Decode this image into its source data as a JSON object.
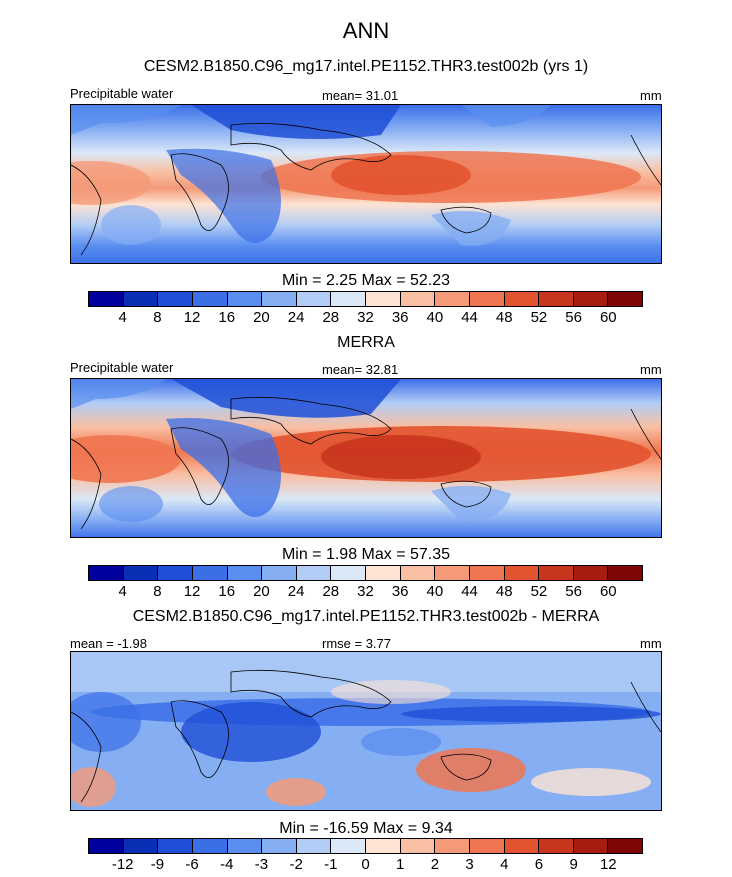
{
  "figure": {
    "title": "ANN"
  },
  "panels": [
    {
      "title": "CESM2.B1850.C96_mg17.intel.PE1152.THR3.test002b (yrs 1)",
      "left_label": "Precipitable water",
      "center_label": "mean=  31.01",
      "right_label": "mm",
      "minmax": "Min =   2.25 Max =  52.23",
      "colorbar": {
        "ticks": [
          "4",
          "8",
          "12",
          "16",
          "20",
          "24",
          "28",
          "32",
          "36",
          "40",
          "44",
          "48",
          "52",
          "56",
          "60"
        ],
        "colors": [
          "#00009c",
          "#0a2fb4",
          "#1f4fd6",
          "#3b6fe8",
          "#5a8ef0",
          "#86aef3",
          "#b2cdf5",
          "#dbe8f7",
          "#fde3d3",
          "#f9bfa3",
          "#f49a78",
          "#ef7650",
          "#e2532f",
          "#c8351d",
          "#a81b10",
          "#7e0705"
        ]
      }
    },
    {
      "title": "MERRA",
      "left_label": "Precipitable water",
      "center_label": "mean=  32.81",
      "right_label": "mm",
      "minmax": "Min =   1.98 Max =  57.35",
      "colorbar": {
        "ticks": [
          "4",
          "8",
          "12",
          "16",
          "20",
          "24",
          "28",
          "32",
          "36",
          "40",
          "44",
          "48",
          "52",
          "56",
          "60"
        ],
        "colors": [
          "#00009c",
          "#0a2fb4",
          "#1f4fd6",
          "#3b6fe8",
          "#5a8ef0",
          "#86aef3",
          "#b2cdf5",
          "#dbe8f7",
          "#fde3d3",
          "#f9bfa3",
          "#f49a78",
          "#ef7650",
          "#e2532f",
          "#c8351d",
          "#a81b10",
          "#7e0705"
        ]
      }
    },
    {
      "title": "CESM2.B1850.C96_mg17.intel.PE1152.THR3.test002b - MERRA",
      "left_label": "mean =  -1.98",
      "center_label": "rmse =   3.77",
      "right_label": "mm",
      "minmax": "Min = -16.59 Max =   9.34",
      "colorbar": {
        "ticks": [
          "-12",
          "-9",
          "-6",
          "-4",
          "-3",
          "-2",
          "-1",
          "0",
          "1",
          "2",
          "3",
          "4",
          "6",
          "9",
          "12"
        ],
        "colors": [
          "#00009c",
          "#0a2fb4",
          "#1f4fd6",
          "#3b6fe8",
          "#5a8ef0",
          "#86aef3",
          "#b2cdf5",
          "#dbe8f7",
          "#fde3d3",
          "#f9bfa3",
          "#f49a78",
          "#ef7650",
          "#e2532f",
          "#c8351d",
          "#a81b10",
          "#7e0705"
        ]
      }
    }
  ]
}
